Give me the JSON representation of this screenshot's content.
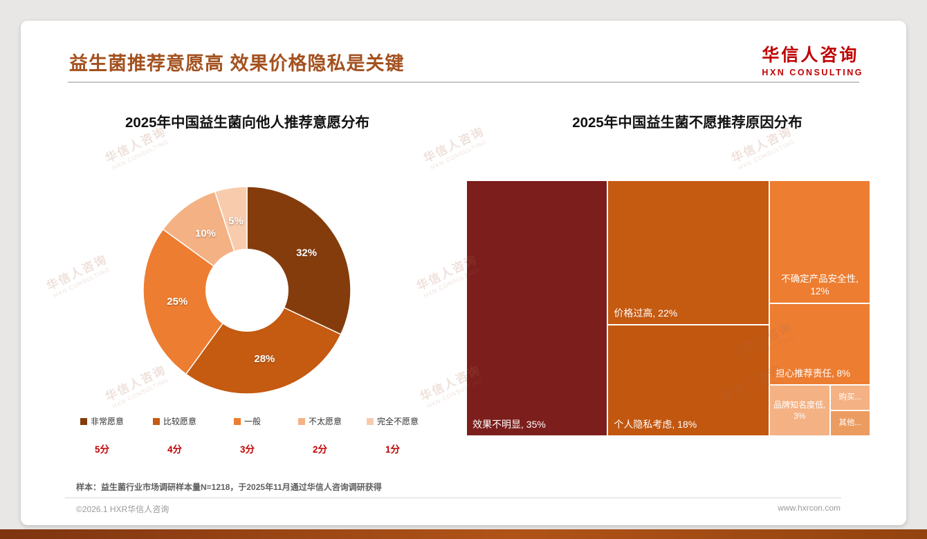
{
  "header": {
    "title": "益生菌推荐意愿高 效果价格隐私是关键",
    "logo_name": "华信人咨询",
    "logo_sub": "HXN CONSULTING"
  },
  "watermark": {
    "line1": "华信人咨询",
    "line2": "HXN CONSULTING"
  },
  "note": "样本：益生菌行业市场调研样本量N=1218，于2025年11月通过华信人咨询调研获得",
  "footer": {
    "left": "©2026.1 HXR华信人咨询",
    "right": "www.hxrcon.com"
  },
  "chart_data": [
    {
      "type": "pie",
      "donut": true,
      "title": "2025年中国益生菌向他人推荐意愿分布",
      "labels": [
        "非常愿意",
        "比较愿意",
        "一般",
        "不太愿意",
        "完全不愿意"
      ],
      "values": [
        32,
        28,
        25,
        10,
        5
      ],
      "value_labels": [
        "32%",
        "28%",
        "25%",
        "10%",
        "5%"
      ],
      "scores": [
        "5分",
        "4分",
        "3分",
        "2分",
        "1分"
      ],
      "colors": [
        "#843C0C",
        "#C55A11",
        "#ED7D31",
        "#F4B183",
        "#F8CBAD"
      ],
      "legend_position": "bottom"
    },
    {
      "type": "treemap",
      "title": "2025年中国益生菌不愿推荐原因分布",
      "items": [
        {
          "name": "效果不明显",
          "label": "效果不明显, 35%",
          "value": 35,
          "color": "#7C1E1C"
        },
        {
          "name": "价格过高",
          "label": "价格过高, 22%",
          "value": 22,
          "color": "#C55A11"
        },
        {
          "name": "个人隐私考虑",
          "label": "个人隐私考虑, 18%",
          "value": 18,
          "color": "#C2570F"
        },
        {
          "name": "不确定产品安全性",
          "label": "不确定产品安全性, 12%",
          "value": 12,
          "color": "#ED7D31"
        },
        {
          "name": "担心推荐责任",
          "label": "担心推荐责任, 8%",
          "value": 8,
          "color": "#ED7D31"
        },
        {
          "name": "品牌知名度低",
          "label": "品牌知名度低, 3%",
          "value": 3,
          "color": "#F4B183"
        },
        {
          "name": "购买",
          "label": "购买...",
          "color": "#F4B183"
        },
        {
          "name": "其他",
          "label": "其他...",
          "color": "#EC9C60"
        }
      ]
    }
  ]
}
